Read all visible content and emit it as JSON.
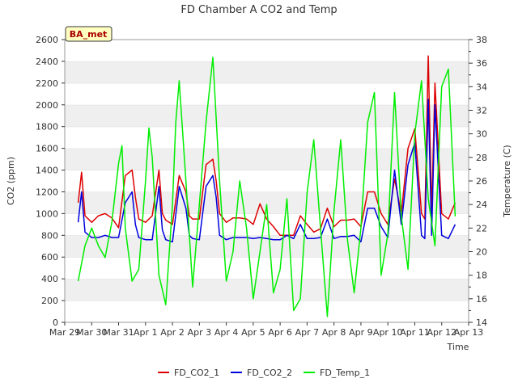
{
  "chart_data": {
    "type": "line",
    "title": "FD Chamber A CO2 and Temp",
    "xlabel": "Time",
    "ylabel": "CO2 (ppm)",
    "y2label": "Temperature (C)",
    "annotation": "BA_met",
    "xlim": [
      "2023-03-29",
      "2023-04-13"
    ],
    "ylim": [
      0,
      2600
    ],
    "y2lim": [
      14,
      38
    ],
    "x_ticks": [
      "Mar 29",
      "Mar 30",
      "Mar 31",
      "Apr 1",
      "Apr 2",
      "Apr 3",
      "Apr 4",
      "Apr 5",
      "Apr 6",
      "Apr 7",
      "Apr 8",
      "Apr 9",
      "Apr 10",
      "Apr 11",
      "Apr 12",
      "Apr 13"
    ],
    "y_ticks": [
      0,
      200,
      400,
      600,
      800,
      1000,
      1200,
      1400,
      1600,
      1800,
      2000,
      2200,
      2400,
      2600
    ],
    "y2_ticks": [
      14,
      16,
      18,
      20,
      22,
      24,
      26,
      28,
      30,
      32,
      34,
      36,
      38
    ],
    "grid": "horizontal bands",
    "legend_position": "bottom",
    "series": [
      {
        "name": "FD_CO2_1",
        "color": "#dd0000",
        "axis": "left",
        "x": [
          "2023-03-29 12:00",
          "2023-03-29 15:00",
          "2023-03-29 18:00",
          "2023-03-30 00:00",
          "2023-03-30 06:00",
          "2023-03-30 12:00",
          "2023-03-30 18:00",
          "2023-03-31 00:00",
          "2023-03-31 06:00",
          "2023-03-31 12:00",
          "2023-03-31 15:00",
          "2023-03-31 18:00",
          "2023-04-01 00:00",
          "2023-04-01 06:00",
          "2023-04-01 12:00",
          "2023-04-01 15:00",
          "2023-04-01 18:00",
          "2023-04-02 00:00",
          "2023-04-02 06:00",
          "2023-04-02 12:00",
          "2023-04-02 15:00",
          "2023-04-02 18:00",
          "2023-04-03 00:00",
          "2023-04-03 06:00",
          "2023-04-03 12:00",
          "2023-04-03 15:00",
          "2023-04-03 18:00",
          "2023-04-04 00:00",
          "2023-04-04 06:00",
          "2023-04-04 12:00",
          "2023-04-04 18:00",
          "2023-04-05 00:00",
          "2023-04-05 06:00",
          "2023-04-05 12:00",
          "2023-04-05 18:00",
          "2023-04-06 00:00",
          "2023-04-06 06:00",
          "2023-04-06 12:00",
          "2023-04-06 18:00",
          "2023-04-07 00:00",
          "2023-04-07 06:00",
          "2023-04-07 12:00",
          "2023-04-07 18:00",
          "2023-04-08 00:00",
          "2023-04-08 06:00",
          "2023-04-08 12:00",
          "2023-04-08 18:00",
          "2023-04-09 00:00",
          "2023-04-09 06:00",
          "2023-04-09 12:00",
          "2023-04-09 18:00",
          "2023-04-10 00:00",
          "2023-04-10 06:00",
          "2023-04-10 12:00",
          "2023-04-10 18:00",
          "2023-04-11 00:00",
          "2023-04-11 06:00",
          "2023-04-11 09:00",
          "2023-04-11 12:00",
          "2023-04-11 15:00",
          "2023-04-11 18:00",
          "2023-04-12 00:00",
          "2023-04-12 06:00",
          "2023-04-12 12:00"
        ],
        "y": [
          1100,
          1380,
          980,
          920,
          980,
          1000,
          960,
          870,
          1350,
          1400,
          1150,
          950,
          920,
          980,
          1400,
          1000,
          940,
          900,
          1350,
          1200,
          980,
          950,
          950,
          1450,
          1500,
          1300,
          1000,
          920,
          960,
          960,
          950,
          900,
          1090,
          950,
          880,
          800,
          800,
          800,
          980,
          900,
          830,
          860,
          1050,
          880,
          940,
          940,
          950,
          880,
          1200,
          1200,
          1000,
          900,
          1320,
          1000,
          1600,
          1780,
          1000,
          950,
          2450,
          1000,
          2200,
          1000,
          950,
          1100
        ]
      },
      {
        "name": "FD_CO2_2",
        "color": "#0000dd",
        "axis": "left",
        "x": [
          "2023-03-29 12:00",
          "2023-03-29 15:00",
          "2023-03-29 18:00",
          "2023-03-30 00:00",
          "2023-03-30 06:00",
          "2023-03-30 12:00",
          "2023-03-30 18:00",
          "2023-03-31 00:00",
          "2023-03-31 06:00",
          "2023-03-31 12:00",
          "2023-03-31 15:00",
          "2023-03-31 18:00",
          "2023-04-01 00:00",
          "2023-04-01 06:00",
          "2023-04-01 12:00",
          "2023-04-01 15:00",
          "2023-04-01 18:00",
          "2023-04-02 00:00",
          "2023-04-02 06:00",
          "2023-04-02 12:00",
          "2023-04-02 15:00",
          "2023-04-02 18:00",
          "2023-04-03 00:00",
          "2023-04-03 06:00",
          "2023-04-03 12:00",
          "2023-04-03 15:00",
          "2023-04-03 18:00",
          "2023-04-04 00:00",
          "2023-04-04 06:00",
          "2023-04-04 12:00",
          "2023-04-04 18:00",
          "2023-04-05 00:00",
          "2023-04-05 06:00",
          "2023-04-05 12:00",
          "2023-04-05 18:00",
          "2023-04-06 00:00",
          "2023-04-06 06:00",
          "2023-04-06 12:00",
          "2023-04-06 18:00",
          "2023-04-07 00:00",
          "2023-04-07 06:00",
          "2023-04-07 12:00",
          "2023-04-07 18:00",
          "2023-04-08 00:00",
          "2023-04-08 06:00",
          "2023-04-08 12:00",
          "2023-04-08 18:00",
          "2023-04-09 00:00",
          "2023-04-09 06:00",
          "2023-04-09 12:00",
          "2023-04-09 18:00",
          "2023-04-10 00:00",
          "2023-04-10 06:00",
          "2023-04-10 12:00",
          "2023-04-10 18:00",
          "2023-04-11 00:00",
          "2023-04-11 06:00",
          "2023-04-11 09:00",
          "2023-04-11 12:00",
          "2023-04-11 15:00",
          "2023-04-11 18:00",
          "2023-04-12 00:00",
          "2023-04-12 06:00",
          "2023-04-12 12:00"
        ],
        "y": [
          920,
          1200,
          830,
          780,
          780,
          800,
          780,
          780,
          1100,
          1200,
          900,
          780,
          760,
          760,
          1250,
          850,
          760,
          740,
          1250,
          1050,
          800,
          770,
          760,
          1250,
          1350,
          1150,
          800,
          760,
          780,
          780,
          780,
          770,
          780,
          770,
          760,
          760,
          800,
          770,
          900,
          770,
          770,
          780,
          950,
          770,
          790,
          790,
          800,
          740,
          1050,
          1050,
          880,
          780,
          1400,
          900,
          1450,
          1650,
          800,
          770,
          2050,
          800,
          2000,
          800,
          770,
          900
        ]
      },
      {
        "name": "FD_Temp_1",
        "color": "#00ee00",
        "axis": "right",
        "x": [
          "2023-03-29 12:00",
          "2023-03-29 18:00",
          "2023-03-30 00:00",
          "2023-03-30 06:00",
          "2023-03-30 12:00",
          "2023-03-30 18:00",
          "2023-03-31 00:00",
          "2023-03-31 03:00",
          "2023-03-31 06:00",
          "2023-03-31 12:00",
          "2023-03-31 18:00",
          "2023-04-01 00:00",
          "2023-04-01 03:00",
          "2023-04-01 06:00",
          "2023-04-01 12:00",
          "2023-04-01 18:00",
          "2023-04-02 00:00",
          "2023-04-02 03:00",
          "2023-04-02 06:00",
          "2023-04-02 12:00",
          "2023-04-02 18:00",
          "2023-04-03 00:00",
          "2023-04-03 06:00",
          "2023-04-03 12:00",
          "2023-04-03 18:00",
          "2023-04-04 00:00",
          "2023-04-04 06:00",
          "2023-04-04 12:00",
          "2023-04-04 18:00",
          "2023-04-05 00:00",
          "2023-04-05 06:00",
          "2023-04-05 12:00",
          "2023-04-05 18:00",
          "2023-04-06 00:00",
          "2023-04-06 06:00",
          "2023-04-06 12:00",
          "2023-04-06 18:00",
          "2023-04-07 00:00",
          "2023-04-07 06:00",
          "2023-04-07 12:00",
          "2023-04-07 18:00",
          "2023-04-08 00:00",
          "2023-04-08 06:00",
          "2023-04-08 12:00",
          "2023-04-08 18:00",
          "2023-04-09 00:00",
          "2023-04-09 06:00",
          "2023-04-09 12:00",
          "2023-04-09 18:00",
          "2023-04-10 00:00",
          "2023-04-10 06:00",
          "2023-04-10 12:00",
          "2023-04-10 18:00",
          "2023-04-11 00:00",
          "2023-04-11 06:00",
          "2023-04-11 12:00",
          "2023-04-11 18:00",
          "2023-04-12 00:00",
          "2023-04-12 06:00",
          "2023-04-12 12:00"
        ],
        "y": [
          17.5,
          20.5,
          22.0,
          20.5,
          19.5,
          22.5,
          27.5,
          29.0,
          22.0,
          17.5,
          18.5,
          26.0,
          30.5,
          28.0,
          18.0,
          15.5,
          24.0,
          31.0,
          34.5,
          26.0,
          17.0,
          24.0,
          31.0,
          36.5,
          26.0,
          17.5,
          20.0,
          26.0,
          22.0,
          16.0,
          20.0,
          24.0,
          16.5,
          18.5,
          24.5,
          15.0,
          16.0,
          25.0,
          29.5,
          22.0,
          14.5,
          23.5,
          29.5,
          21.0,
          16.5,
          22.0,
          31.0,
          33.5,
          18.0,
          21.5,
          33.5,
          23.0,
          18.5,
          30.0,
          34.5,
          24.5,
          20.5,
          34.0,
          35.5,
          23.0
        ]
      }
    ]
  }
}
